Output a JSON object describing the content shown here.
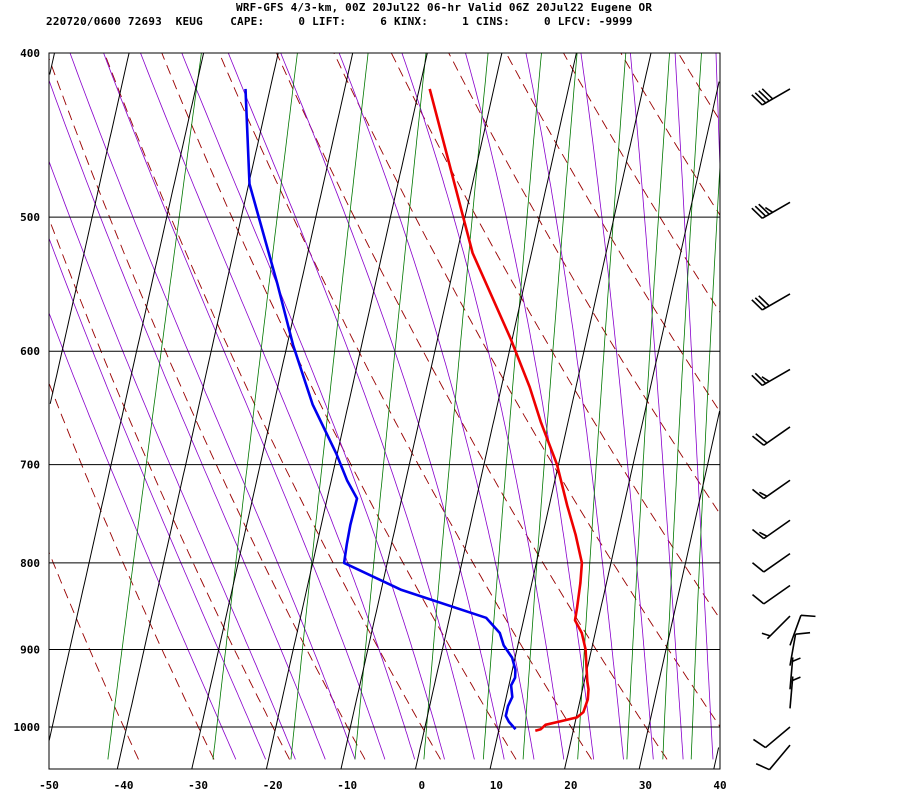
{
  "header": {
    "line1": "WRF-GFS 4/3-km, 00Z 20Jul22 06-hr Valid 06Z 20Jul22 Eugene OR",
    "line2": "220720/0600 72693  KEUG    CAPE:     0 LIFT:     6 KINX:     1 CINS:     0 LFCV: -9999"
  },
  "chart_data": {
    "type": "line",
    "title": "WRF-GFS 4/3-km, 00Z 20Jul22 06-hr Valid 06Z 20Jul22 Eugene OR",
    "xlabel": "",
    "ylabel": "",
    "x_ticks": [
      -50,
      -40,
      -30,
      -20,
      -10,
      0,
      10,
      20,
      30,
      40
    ],
    "y_ticks": [
      400,
      500,
      600,
      700,
      800,
      900,
      1000
    ],
    "xlim": [
      -50,
      40
    ],
    "ylim": [
      1040,
      400
    ],
    "y_scale": "log",
    "grid": true,
    "series": [
      {
        "color": "#ee0000",
        "points": [
          [
            15.3,
            1005
          ],
          [
            16.0,
            1003
          ],
          [
            16.5,
            997
          ],
          [
            18.5,
            992
          ],
          [
            20.5,
            987
          ],
          [
            21.2,
            980
          ],
          [
            21.4,
            963
          ],
          [
            21.2,
            950
          ],
          [
            20.8,
            940
          ],
          [
            20.2,
            920
          ],
          [
            19.6,
            900
          ],
          [
            18.6,
            880
          ],
          [
            17.3,
            865
          ],
          [
            17.2,
            850
          ],
          [
            16.9,
            822
          ],
          [
            16.5,
            800
          ],
          [
            14.8,
            770
          ],
          [
            12.8,
            740
          ],
          [
            10.2,
            700
          ],
          [
            6.7,
            660
          ],
          [
            4.2,
            630
          ],
          [
            0.2,
            590
          ],
          [
            -7.5,
            525
          ],
          [
            -18.2,
            420
          ]
        ]
      },
      {
        "color": "#0000ee",
        "points": [
          [
            12.6,
            1003
          ],
          [
            11.5,
            993
          ],
          [
            10.9,
            985
          ],
          [
            10.9,
            972
          ],
          [
            11.2,
            960
          ],
          [
            10.7,
            945
          ],
          [
            11.0,
            935
          ],
          [
            10.8,
            925
          ],
          [
            10.0,
            910
          ],
          [
            8.5,
            895
          ],
          [
            7.6,
            880
          ],
          [
            5.3,
            862
          ],
          [
            -6.9,
            830
          ],
          [
            -15.4,
            800
          ],
          [
            -15.6,
            780
          ],
          [
            -15.7,
            760
          ],
          [
            -15.6,
            733
          ],
          [
            -17.5,
            715
          ],
          [
            -19.7,
            690
          ],
          [
            -24.4,
            645
          ],
          [
            -28.8,
            595
          ],
          [
            -32.8,
            547
          ],
          [
            -39.5,
            478
          ],
          [
            -42.9,
            420
          ]
        ]
      }
    ],
    "background_lines": {
      "isotherm_color": "#000000",
      "dry_adiabat_color": "#990000",
      "moist_adiabat_color": "#8800cc",
      "mixing_ratio_color": "#007700"
    },
    "wind_barbs": {
      "color": "#000000",
      "levels": [
        {
          "p": 420,
          "dir": 240,
          "speed": 40
        },
        {
          "p": 490,
          "dir": 240,
          "speed": 35
        },
        {
          "p": 555,
          "dir": 240,
          "speed": 30
        },
        {
          "p": 615,
          "dir": 240,
          "speed": 25
        },
        {
          "p": 665,
          "dir": 235,
          "speed": 20
        },
        {
          "p": 715,
          "dir": 235,
          "speed": 15
        },
        {
          "p": 755,
          "dir": 235,
          "speed": 15
        },
        {
          "p": 790,
          "dir": 235,
          "speed": 10
        },
        {
          "p": 825,
          "dir": 235,
          "speed": 10
        },
        {
          "p": 860,
          "dir": 225,
          "speed": 5
        },
        {
          "p": 895,
          "dir": 20,
          "speed": 10
        },
        {
          "p": 920,
          "dir": 10,
          "speed": 10
        },
        {
          "p": 950,
          "dir": 5,
          "speed": 5
        },
        {
          "p": 975,
          "dir": 5,
          "speed": 5
        },
        {
          "p": 1000,
          "dir": 230,
          "speed": 10
        },
        {
          "p": 1025,
          "dir": 220,
          "speed": 10
        }
      ]
    }
  }
}
